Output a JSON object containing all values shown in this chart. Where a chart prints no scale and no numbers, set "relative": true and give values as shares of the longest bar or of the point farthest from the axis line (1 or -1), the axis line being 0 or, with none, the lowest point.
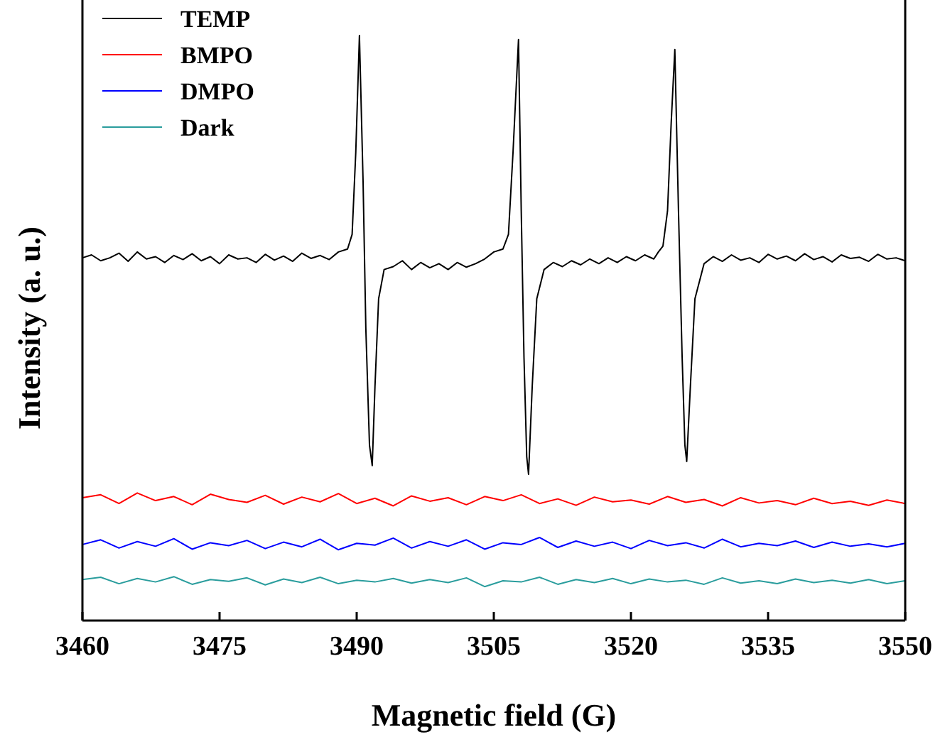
{
  "chart_data": {
    "type": "line",
    "relative": true,
    "xlabel": "Magnetic field (G)",
    "ylabel": "Intensity (a. u.)",
    "xlim": [
      3460,
      3550
    ],
    "xticks": [
      3460,
      3475,
      3490,
      3505,
      3520,
      3535,
      3550
    ],
    "legend": "top left",
    "series": [
      {
        "name": "TEMP",
        "color": "#000000",
        "x": [
          3460,
          3461,
          3462,
          3463,
          3464,
          3465,
          3466,
          3467,
          3468,
          3469,
          3470,
          3471,
          3472,
          3473,
          3474,
          3475,
          3476,
          3477,
          3478,
          3479,
          3480,
          3481,
          3482,
          3483,
          3484,
          3485,
          3486,
          3487,
          3488,
          3489,
          3489.5,
          3489.9,
          3490.3,
          3490.7,
          3491,
          3491.4,
          3491.7,
          3492,
          3492.4,
          3493,
          3494,
          3495,
          3496,
          3497,
          3498,
          3499,
          3500,
          3501,
          3502,
          3503,
          3504,
          3505,
          3506,
          3506.6,
          3507.1,
          3507.7,
          3508,
          3508.3,
          3508.6,
          3508.8,
          3509.2,
          3509.7,
          3510.5,
          3511.5,
          3512.5,
          3513.5,
          3514.5,
          3515.5,
          3516.5,
          3517.5,
          3518.5,
          3519.5,
          3520.5,
          3521.5,
          3522.5,
          3523,
          3523.5,
          3524,
          3524.4,
          3524.8,
          3525.2,
          3525.6,
          3525.9,
          3526.1,
          3526.5,
          3527,
          3528,
          3529,
          3530,
          3531,
          3532,
          3533,
          3534,
          3535,
          3536,
          3537,
          3538,
          3539,
          3540,
          3541,
          3542,
          3543,
          3544,
          3545,
          3546,
          3547,
          3548,
          3549,
          3550
        ],
        "values": [
          0.62,
          0.625,
          0.615,
          0.62,
          0.628,
          0.614,
          0.63,
          0.618,
          0.622,
          0.612,
          0.624,
          0.617,
          0.627,
          0.615,
          0.622,
          0.61,
          0.625,
          0.618,
          0.62,
          0.612,
          0.626,
          0.616,
          0.623,
          0.614,
          0.628,
          0.619,
          0.624,
          0.617,
          0.63,
          0.635,
          0.66,
          0.8,
          1.0,
          0.75,
          0.5,
          0.3,
          0.265,
          0.4,
          0.55,
          0.6,
          0.605,
          0.615,
          0.6,
          0.612,
          0.603,
          0.61,
          0.6,
          0.612,
          0.604,
          0.61,
          0.618,
          0.63,
          0.635,
          0.66,
          0.8,
          0.993,
          0.7,
          0.45,
          0.28,
          0.25,
          0.4,
          0.55,
          0.6,
          0.612,
          0.605,
          0.615,
          0.608,
          0.618,
          0.61,
          0.62,
          0.612,
          0.622,
          0.615,
          0.625,
          0.618,
          0.63,
          0.64,
          0.7,
          0.85,
          0.976,
          0.7,
          0.45,
          0.3,
          0.272,
          0.4,
          0.55,
          0.61,
          0.622,
          0.614,
          0.625,
          0.616,
          0.62,
          0.612,
          0.626,
          0.618,
          0.623,
          0.615,
          0.627,
          0.617,
          0.622,
          0.613,
          0.625,
          0.619,
          0.621,
          0.614,
          0.626,
          0.618,
          0.62,
          0.615
        ]
      },
      {
        "name": "BMPO",
        "color": "#ff0000",
        "x": [
          3460,
          3462,
          3464,
          3466,
          3468,
          3470,
          3472,
          3474,
          3476,
          3478,
          3480,
          3482,
          3484,
          3486,
          3488,
          3490,
          3492,
          3494,
          3496,
          3498,
          3500,
          3502,
          3504,
          3506,
          3508,
          3510,
          3512,
          3514,
          3516,
          3518,
          3520,
          3522,
          3524,
          3526,
          3528,
          3530,
          3532,
          3534,
          3536,
          3538,
          3540,
          3542,
          3544,
          3546,
          3548,
          3550
        ],
        "values": [
          0.21,
          0.215,
          0.2,
          0.218,
          0.205,
          0.212,
          0.198,
          0.216,
          0.207,
          0.202,
          0.214,
          0.199,
          0.211,
          0.203,
          0.217,
          0.2,
          0.209,
          0.196,
          0.213,
          0.204,
          0.21,
          0.198,
          0.212,
          0.205,
          0.215,
          0.2,
          0.208,
          0.197,
          0.211,
          0.203,
          0.206,
          0.199,
          0.212,
          0.202,
          0.207,
          0.196,
          0.21,
          0.201,
          0.205,
          0.198,
          0.209,
          0.2,
          0.204,
          0.197,
          0.206,
          0.2
        ]
      },
      {
        "name": "DMPO",
        "color": "#0000ff",
        "x": [
          3460,
          3462,
          3464,
          3466,
          3468,
          3470,
          3472,
          3474,
          3476,
          3478,
          3480,
          3482,
          3484,
          3486,
          3488,
          3490,
          3492,
          3494,
          3496,
          3498,
          3500,
          3502,
          3504,
          3506,
          3508,
          3510,
          3512,
          3514,
          3516,
          3518,
          3520,
          3522,
          3524,
          3526,
          3528,
          3530,
          3532,
          3534,
          3536,
          3538,
          3540,
          3542,
          3544,
          3546,
          3548,
          3550
        ],
        "values": [
          0.13,
          0.138,
          0.124,
          0.135,
          0.127,
          0.14,
          0.122,
          0.133,
          0.128,
          0.137,
          0.123,
          0.134,
          0.126,
          0.139,
          0.121,
          0.132,
          0.129,
          0.141,
          0.124,
          0.135,
          0.127,
          0.138,
          0.122,
          0.133,
          0.13,
          0.142,
          0.125,
          0.136,
          0.127,
          0.134,
          0.123,
          0.137,
          0.128,
          0.133,
          0.124,
          0.139,
          0.126,
          0.132,
          0.128,
          0.136,
          0.125,
          0.134,
          0.127,
          0.131,
          0.126,
          0.132
        ]
      },
      {
        "name": "Dark",
        "color": "#2a9d9d",
        "x": [
          3460,
          3462,
          3464,
          3466,
          3468,
          3470,
          3472,
          3474,
          3476,
          3478,
          3480,
          3482,
          3484,
          3486,
          3488,
          3490,
          3492,
          3494,
          3496,
          3498,
          3500,
          3502,
          3504,
          3506,
          3508,
          3510,
          3512,
          3514,
          3516,
          3518,
          3520,
          3522,
          3524,
          3526,
          3528,
          3530,
          3532,
          3534,
          3536,
          3538,
          3540,
          3542,
          3544,
          3546,
          3548,
          3550
        ],
        "values": [
          0.07,
          0.074,
          0.063,
          0.072,
          0.066,
          0.075,
          0.062,
          0.07,
          0.067,
          0.073,
          0.061,
          0.071,
          0.065,
          0.074,
          0.063,
          0.069,
          0.066,
          0.072,
          0.064,
          0.07,
          0.065,
          0.073,
          0.058,
          0.068,
          0.066,
          0.074,
          0.062,
          0.07,
          0.065,
          0.072,
          0.063,
          0.071,
          0.066,
          0.069,
          0.062,
          0.073,
          0.064,
          0.068,
          0.063,
          0.071,
          0.065,
          0.069,
          0.064,
          0.07,
          0.063,
          0.068
        ]
      }
    ]
  }
}
